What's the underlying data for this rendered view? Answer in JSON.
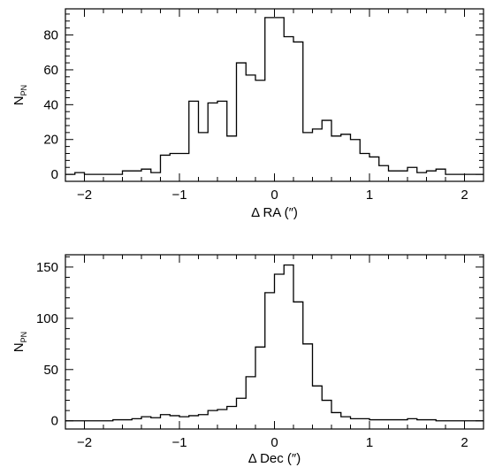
{
  "chart_data": [
    {
      "type": "histogram",
      "id": "ra",
      "xlabel": "Δ RA (″)",
      "ylabel": "N",
      "ylabel_sub": "PN",
      "xlim": [
        -2.2,
        2.2
      ],
      "ylim": [
        -4,
        95
      ],
      "xticks": [
        -2,
        -1,
        0,
        1,
        2
      ],
      "yticks": [
        0,
        20,
        40,
        60,
        80
      ],
      "bin_width": 0.1,
      "bin_start": -2.2,
      "values": [
        0,
        1,
        0,
        0,
        0,
        0,
        2,
        2,
        3,
        1,
        11,
        12,
        12,
        42,
        24,
        41,
        42,
        22,
        64,
        57,
        54,
        90,
        90,
        79,
        76,
        24,
        26,
        31,
        22,
        23,
        20,
        12,
        10,
        5,
        2,
        2,
        4,
        1,
        2,
        3,
        0,
        0,
        0,
        0
      ]
    },
    {
      "type": "histogram",
      "id": "dec",
      "xlabel": "Δ Dec (″)",
      "ylabel": "N",
      "ylabel_sub": "PN",
      "xlim": [
        -2.2,
        2.2
      ],
      "ylim": [
        -8,
        162
      ],
      "xticks": [
        -2,
        -1,
        0,
        1,
        2
      ],
      "yticks": [
        0,
        50,
        100,
        150
      ],
      "bin_width": 0.1,
      "bin_start": -2.2,
      "values": [
        0,
        0,
        0,
        0,
        0,
        1,
        1,
        2,
        4,
        3,
        6,
        5,
        4,
        5,
        6,
        10,
        11,
        14,
        22,
        43,
        72,
        125,
        143,
        152,
        116,
        75,
        34,
        20,
        8,
        4,
        2,
        2,
        1,
        1,
        1,
        1,
        2,
        1,
        1,
        0,
        0,
        0,
        0,
        0
      ]
    }
  ]
}
